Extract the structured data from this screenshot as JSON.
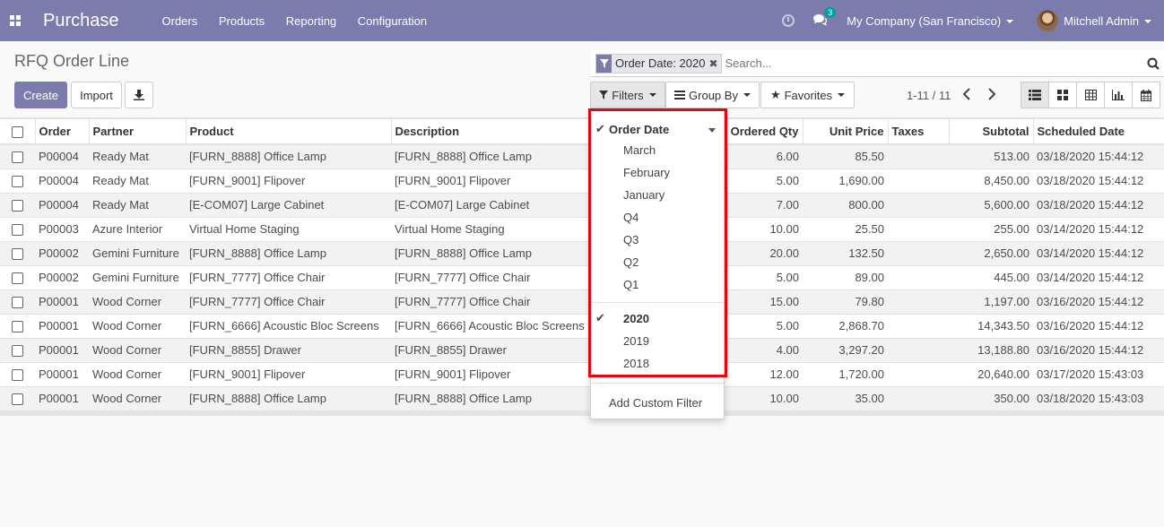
{
  "navbar": {
    "app_name": "Purchase",
    "menu": [
      "Orders",
      "Products",
      "Reporting",
      "Configuration"
    ],
    "chat_count": "3",
    "company": "My Company (San Francisco)",
    "user": "Mitchell Admin",
    "color": "#7c7bad"
  },
  "page": {
    "title": "RFQ Order Line",
    "create_label": "Create",
    "import_label": "Import"
  },
  "search": {
    "facet_label": "Order Date: 2020",
    "placeholder": "Search..."
  },
  "search_buttons": {
    "filters": "Filters",
    "group_by": "Group By",
    "favorites": "Favorites"
  },
  "pager": {
    "value": "1-11 / 11"
  },
  "table": {
    "headers": [
      "Order",
      "Partner",
      "Product",
      "Description",
      "Ordered Qty",
      "Unit Price",
      "Taxes",
      "Subtotal",
      "Scheduled Date"
    ],
    "rows": [
      [
        "P00004",
        "Ready Mat",
        "[FURN_8888] Office Lamp",
        "[FURN_8888] Office Lamp",
        "6.00",
        "85.50",
        "",
        "513.00",
        "03/18/2020 15:44:12"
      ],
      [
        "P00004",
        "Ready Mat",
        "[FURN_9001] Flipover",
        "[FURN_9001] Flipover",
        "5.00",
        "1,690.00",
        "",
        "8,450.00",
        "03/18/2020 15:44:12"
      ],
      [
        "P00004",
        "Ready Mat",
        "[E-COM07] Large Cabinet",
        "[E-COM07] Large Cabinet",
        "7.00",
        "800.00",
        "",
        "5,600.00",
        "03/18/2020 15:44:12"
      ],
      [
        "P00003",
        "Azure Interior",
        "Virtual Home Staging",
        "Virtual Home Staging",
        "10.00",
        "25.50",
        "",
        "255.00",
        "03/14/2020 15:44:12"
      ],
      [
        "P00002",
        "Gemini Furniture",
        "[FURN_8888] Office Lamp",
        "[FURN_8888] Office Lamp",
        "20.00",
        "132.50",
        "",
        "2,650.00",
        "03/14/2020 15:44:12"
      ],
      [
        "P00002",
        "Gemini Furniture",
        "[FURN_7777] Office Chair",
        "[FURN_7777] Office Chair",
        "5.00",
        "89.00",
        "",
        "445.00",
        "03/14/2020 15:44:12"
      ],
      [
        "P00001",
        "Wood Corner",
        "[FURN_7777] Office Chair",
        "[FURN_7777] Office Chair",
        "15.00",
        "79.80",
        "",
        "1,197.00",
        "03/16/2020 15:44:12"
      ],
      [
        "P00001",
        "Wood Corner",
        "[FURN_6666] Acoustic Bloc Screens",
        "[FURN_6666] Acoustic Bloc Screens",
        "5.00",
        "2,868.70",
        "",
        "14,343.50",
        "03/16/2020 15:44:12"
      ],
      [
        "P00001",
        "Wood Corner",
        "[FURN_8855] Drawer",
        "[FURN_8855] Drawer",
        "4.00",
        "3,297.20",
        "",
        "13,188.80",
        "03/16/2020 15:44:12"
      ],
      [
        "P00001",
        "Wood Corner",
        "[FURN_9001] Flipover",
        "[FURN_9001] Flipover",
        "12.00",
        "1,720.00",
        "",
        "20,640.00",
        "03/17/2020 15:43:03"
      ],
      [
        "P00001",
        "Wood Corner",
        "[FURN_8888] Office Lamp",
        "[FURN_8888] Office Lamp",
        "10.00",
        "35.00",
        "",
        "350.00",
        "03/18/2020 15:43:03"
      ]
    ]
  },
  "filters_dropdown": {
    "group_label": "Order Date",
    "periods": [
      "March",
      "February",
      "January",
      "Q4",
      "Q3",
      "Q2",
      "Q1"
    ],
    "years": [
      "2020",
      "2019",
      "2018"
    ],
    "selected_year": "2020",
    "add_custom": "Add Custom Filter",
    "highlight_color": "#e30613"
  }
}
